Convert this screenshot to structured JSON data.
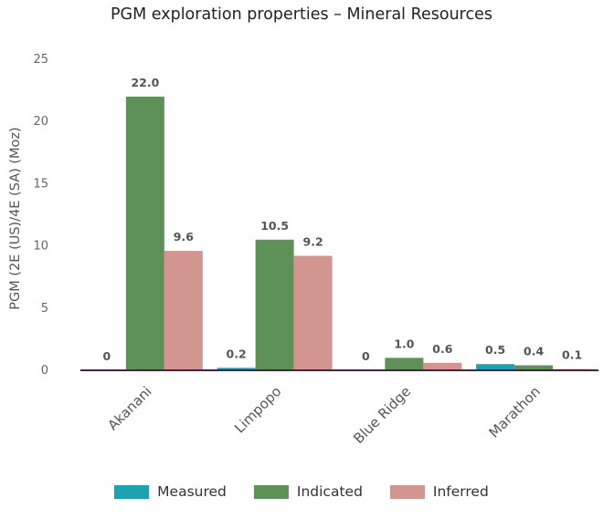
{
  "chart_data": {
    "type": "bar",
    "title": "PGM exploration properties – Mineral Resources",
    "ylabel": "PGM (2E (US)/4E (SA) (Moz)",
    "xlabel": "",
    "ylim": [
      0,
      25
    ],
    "yticks": [
      0,
      5,
      10,
      15,
      20,
      25
    ],
    "grid": false,
    "legend_position": "bottom",
    "categories": [
      "Akanani",
      "Limpopo",
      "Blue Ridge",
      "Marathon"
    ],
    "series": [
      {
        "name": "Measured",
        "color": "#1fa2b0",
        "values": [
          0,
          0.2,
          0,
          0.5
        ],
        "labels": [
          "0",
          "0.2",
          "0",
          "0.5"
        ]
      },
      {
        "name": "Indicated",
        "color": "#5e9157",
        "values": [
          22.0,
          10.5,
          1.0,
          0.4
        ],
        "labels": [
          "22.0",
          "10.5",
          "1.0",
          "0.4"
        ]
      },
      {
        "name": "Inferred",
        "color": "#d39590",
        "values": [
          9.6,
          9.2,
          0.6,
          0.1
        ],
        "labels": [
          "9.6",
          "9.2",
          "0.6",
          "0.1"
        ]
      }
    ],
    "axis_color": "#4a1e4e"
  }
}
